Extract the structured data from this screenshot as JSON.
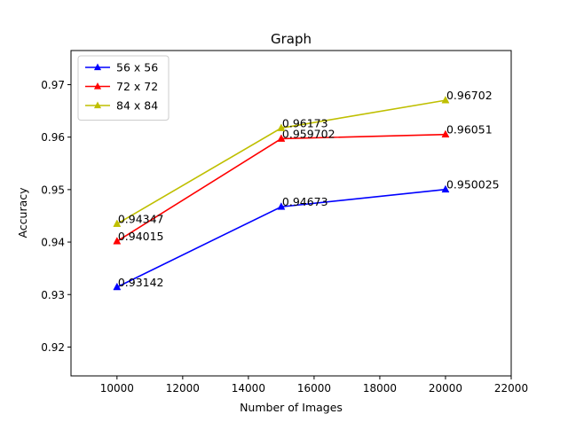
{
  "chart_data": {
    "type": "line",
    "title": "Graph",
    "xlabel": "Number of Images",
    "ylabel": "Accuracy",
    "xlim": [
      8600,
      22000
    ],
    "ylim": [
      0.9145,
      0.9765
    ],
    "xticks": [
      10000,
      12000,
      14000,
      16000,
      18000,
      20000,
      22000
    ],
    "yticks": [
      0.92,
      0.93,
      0.94,
      0.95,
      0.96,
      0.97
    ],
    "grid": false,
    "legend_position": "top-left",
    "marker": "triangle-up",
    "x": [
      10000,
      15000,
      20000
    ],
    "series": [
      {
        "name": "56 x 56",
        "color": "#0000ff",
        "values": [
          0.93142,
          0.94673,
          0.950025
        ],
        "labels": [
          "0.93142",
          "0.94673",
          "0.950025"
        ]
      },
      {
        "name": "72 x 72",
        "color": "#ff0000",
        "values": [
          0.94015,
          0.959702,
          0.96051
        ],
        "labels": [
          "0.94015",
          "0.959702",
          "0.96051"
        ]
      },
      {
        "name": "84 x 84",
        "color": "#bfbf00",
        "values": [
          0.94347,
          0.96173,
          0.96702
        ],
        "labels": [
          "0.94347",
          "0.96173",
          "0.96702"
        ]
      }
    ]
  }
}
